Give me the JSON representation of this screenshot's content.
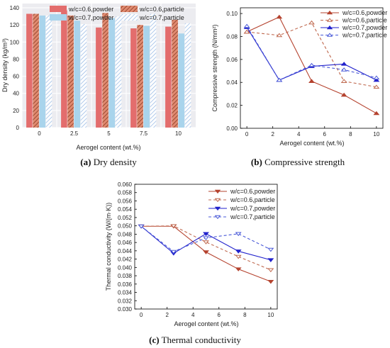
{
  "chart_data": [
    {
      "type": "bar",
      "xlabel": "Aerogel content (wt.%)",
      "ylabel": "Dry density (kg/m³)",
      "categories": [
        "0",
        "2.5",
        "5",
        "7.5",
        "10"
      ],
      "ylim": [
        0,
        145
      ],
      "yticks": [
        "0",
        "20",
        "40",
        "60",
        "80",
        "100",
        "120",
        "140"
      ],
      "legend_position": "top",
      "series": [
        {
          "name": "w/c=0.6,powder",
          "values": [
            133,
            137,
            117,
            116,
            118
          ],
          "color": "#e36d6d",
          "pattern": "solid"
        },
        {
          "name": "w/c=0.6,particle",
          "values": [
            133,
            131,
            134,
            120,
            126
          ],
          "color": "#c05a3a",
          "pattern": "hatch"
        },
        {
          "name": "w/c=0.7,powder",
          "values": [
            131,
            125,
            128,
            119,
            110
          ],
          "color": "#a9d4ec",
          "pattern": "solid"
        },
        {
          "name": "w/c=0.7,particle",
          "values": [
            131,
            121,
            130,
            133,
            122
          ],
          "color": "#a9c8ea",
          "pattern": "hatch"
        }
      ],
      "caption_label": "(a)",
      "caption_text": " Dry density"
    },
    {
      "type": "line",
      "xlabel": "Aerogel content (wt.%)",
      "ylabel": "Compressive strength (N/mm²)",
      "x": [
        0,
        2.5,
        5,
        7.5,
        10
      ],
      "xticks": [
        "0",
        "2",
        "4",
        "6",
        "8",
        "10"
      ],
      "xlim": [
        -0.5,
        10.5
      ],
      "ylim": [
        0,
        0.105
      ],
      "yticks": [
        "0.00",
        "0.02",
        "0.04",
        "0.06",
        "0.08",
        "0.10"
      ],
      "legend_position": "top-right",
      "series": [
        {
          "name": "w/c=0.6,powder",
          "values": [
            0.084,
            0.097,
            0.041,
            0.029,
            0.013
          ],
          "color": "#b5432f",
          "dash": "solid",
          "marker": "tri-up",
          "filled": true
        },
        {
          "name": "w/c=0.6,particle",
          "values": [
            0.084,
            0.081,
            0.092,
            0.041,
            0.036
          ],
          "color": "#c06a50",
          "dash": "dashed",
          "marker": "tri-up",
          "filled": false
        },
        {
          "name": "w/c=0.7,powder",
          "values": [
            0.088,
            0.042,
            0.054,
            0.056,
            0.042
          ],
          "color": "#2222cc",
          "dash": "solid",
          "marker": "tri-up",
          "filled": true
        },
        {
          "name": "w/c=0.7,particle",
          "values": [
            0.089,
            0.042,
            0.055,
            0.051,
            0.044
          ],
          "color": "#4a5ad8",
          "dash": "dashed",
          "marker": "tri-up",
          "filled": false
        }
      ],
      "caption_label": "(b)",
      "caption_text": " Compressive strength"
    },
    {
      "type": "line",
      "xlabel": "Aerogel content (wt.%)",
      "ylabel": "Thermal conductivity (W/(m·K))",
      "x": [
        0,
        2.5,
        5,
        7.5,
        10
      ],
      "xticks": [
        "0",
        "2",
        "4",
        "6",
        "8",
        "10"
      ],
      "xlim": [
        -0.5,
        10.5
      ],
      "ylim": [
        0.03,
        0.06
      ],
      "yticks": [
        "0.030",
        "0.032",
        "0.034",
        "0.036",
        "0.038",
        "0.040",
        "0.042",
        "0.044",
        "0.046",
        "0.048",
        "0.050",
        "0.052",
        "0.054",
        "0.056",
        "0.058",
        "0.060"
      ],
      "legend_position": "top-right",
      "series": [
        {
          "name": "w/c=0.6,powder",
          "values": [
            0.0499,
            0.0499,
            0.0437,
            0.0396,
            0.0366
          ],
          "color": "#b5432f",
          "dash": "solid",
          "marker": "tri-down",
          "filled": true
        },
        {
          "name": "w/c=0.6,particle",
          "values": [
            0.0499,
            0.05,
            0.0461,
            0.0426,
            0.0394
          ],
          "color": "#c06a50",
          "dash": "dashed",
          "marker": "tri-down",
          "filled": false
        },
        {
          "name": "w/c=0.7,powder",
          "values": [
            0.0499,
            0.0434,
            0.0481,
            0.0439,
            0.0418
          ],
          "color": "#2222cc",
          "dash": "solid",
          "marker": "tri-down",
          "filled": true
        },
        {
          "name": "w/c=0.7,particle",
          "values": [
            0.0499,
            0.0438,
            0.0471,
            0.0481,
            0.0443
          ],
          "color": "#4a5ad8",
          "dash": "dashed",
          "marker": "tri-down",
          "filled": false
        }
      ],
      "caption_label": "(c)",
      "caption_text": " Thermal conductivity"
    }
  ]
}
